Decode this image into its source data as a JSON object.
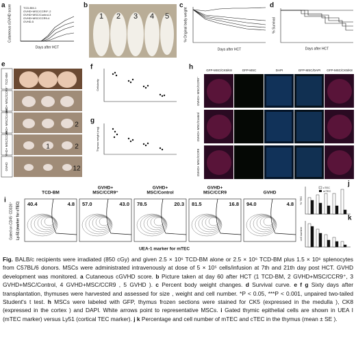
{
  "panel_labels": {
    "a": "a",
    "b": "b",
    "c": "c",
    "d": "d",
    "e": "e",
    "f": "f",
    "g": "g",
    "h": "h",
    "i": "i",
    "j": "j",
    "k": "k"
  },
  "a": {
    "legend": [
      "TCD-BM-1",
      "GVHD+MSC/CCR9⁺-2",
      "GVHD+MSC/Control-3",
      "GVHD+MSC/CCR9-4",
      "GVHD-5"
    ],
    "y_label": "Cutaneous cGVHD score",
    "x_label": "Days after HCT"
  },
  "b": {
    "numbers": [
      "1",
      "2",
      "3",
      "4",
      "5"
    ]
  },
  "c": {
    "y_label": "% Original body weight",
    "x_label": "Days after HCT"
  },
  "d": {
    "y_label": "% Survival",
    "x_label": "Days after HCT"
  },
  "e": {
    "rows": [
      "TCD-BM",
      "GVHD+ MSC/CCR9⁺",
      "GVHD+ MSC/Control",
      "GVHD+ MSC/CCR9",
      "GVHD"
    ],
    "numbers": [
      "2",
      "1",
      "2",
      "12"
    ]
  },
  "f": {
    "y_label": "Cellularity"
  },
  "g": {
    "y_label": "Thymus weight (mg)"
  },
  "h": {
    "columns": [
      "GFP-MSC/CK5/K8",
      "GFP-MSC",
      "DAPI",
      "GFP-MSC/DAPI",
      "GFP-MSC/CK5/K8"
    ],
    "rows": [
      "GVHD+ MSC/CCR9⁺",
      "GVHD+ MSC/Control",
      "GVHD+ MSC/CCR9"
    ]
  },
  "i": {
    "y_label_1": "Gated on CD45⁻CD326⁺",
    "y_label_2": "Ly-51 (marker for cTEC)",
    "x_label": "UEA-1 marker for mTEC",
    "plots": [
      {
        "title": [
          "TCD-BM"
        ],
        "left": "40.4",
        "right": "4.8"
      },
      {
        "title": [
          "GVHD+",
          "MSC/CCR9⁺"
        ],
        "left": "57.0",
        "right": "43.0"
      },
      {
        "title": [
          "GVHD+",
          "MSC/Control"
        ],
        "left": "78.5",
        "right": "20.3"
      },
      {
        "title": [
          "GVHD+",
          "MSC/CCR9"
        ],
        "left": "81.5",
        "right": "16.8"
      },
      {
        "title": [
          "GVHD"
        ],
        "left": "94.0",
        "right": "4.8"
      }
    ]
  },
  "j": {
    "legend": [
      "cTEC",
      "mTEC"
    ],
    "y_label": "% TEC"
  },
  "k": {
    "y_label": "cell number"
  },
  "caption": [
    {
      "text": "Fig.",
      "bold": true
    },
    {
      "text": " BALB/c recipients were irradiated (850 cGy) and given 2.5 × 10⁶ TCD-BM alone or 2.5 × 10⁶ TCD-BM plus 1.5 × 10⁶ splenocytes from C57BL/6 donors.  MSCs were administrated intravenously at dose of 5 × 10⁵ cells/infusion at 7th and 21th day post HCT. GVHD development was monitored. ",
      "bold": false
    },
    {
      "text": "a",
      "bold": true
    },
    {
      "text": " Cutaneous cGVHD score. ",
      "bold": false
    },
    {
      "text": "b",
      "bold": true
    },
    {
      "text": " Picture taken at day 60 after HCT (1 TCD-BM, 2 GVHD+MSC/CCR9⁺, 3 GVHD+MSC/Control, 4 GVHD+MSC/CCR9 , 5 GVHD ). ",
      "bold": false
    },
    {
      "text": "c",
      "bold": true
    },
    {
      "text": " Percent body weight changes. ",
      "bold": false
    },
    {
      "text": "d",
      "bold": true
    },
    {
      "text": " Survival curve. ",
      "bold": false
    },
    {
      "text": "e f g",
      "bold": true
    },
    {
      "text": " Sixty days after transplantation, thymuses were harvested and assessed for size , weight and cell number. *P < 0.05, ***P < 0.001, unpaired two-tailed Student's t test. ",
      "bold": false
    },
    {
      "text": "h",
      "bold": true
    },
    {
      "text": " MSCs were labeled with GFP, thymus frozen sections were stained for CK5 (expressed in the medulla ), CK8 (expressed in the cortex ) and DAPI. White arrows point to representative MSCs. ",
      "bold": false
    },
    {
      "text": "i",
      "bold": true
    },
    {
      "text": " Gated thymic epithelial cells are shown in UEA I (mTEC marker) versus Ly51 (cortical TEC marker). ",
      "bold": false
    },
    {
      "text": "j k",
      "bold": true
    },
    {
      "text": " Percentage and cell number of mTEC and cTEC in the thymus (mean ± SE ).",
      "bold": false
    }
  ]
}
